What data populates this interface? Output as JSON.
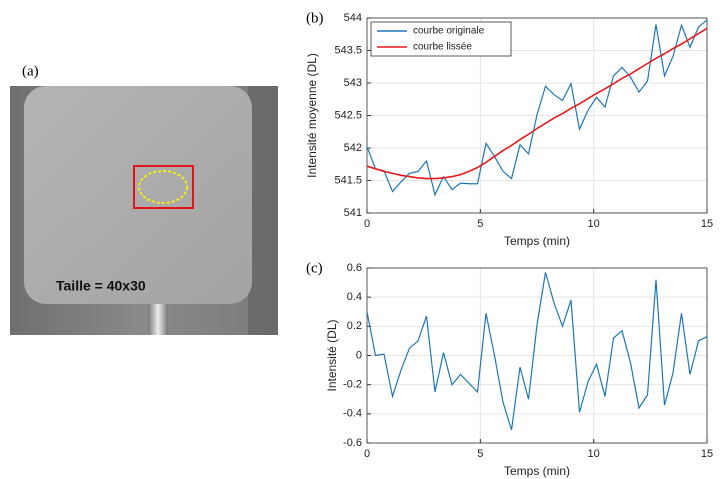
{
  "image_panel": {
    "label": "(a)",
    "caption": "Taille = 40x30"
  },
  "chart_data": [
    {
      "type": "line",
      "panel_label": "(b)",
      "xlabel": "Temps (min)",
      "ylabel": "Intensité moyenne (DL)",
      "x": [
        0,
        0.375,
        0.75,
        1.125,
        1.5,
        1.875,
        2.25,
        2.625,
        3,
        3.375,
        3.75,
        4.125,
        4.5,
        4.875,
        5.25,
        5.625,
        6,
        6.375,
        6.75,
        7.125,
        7.5,
        7.875,
        8.25,
        8.625,
        9,
        9.375,
        9.75,
        10.125,
        10.5,
        10.875,
        11.25,
        11.625,
        12,
        12.375,
        12.75,
        13.125,
        13.5,
        13.875,
        14.25,
        14.625,
        15
      ],
      "series": [
        {
          "name": "courbe originale",
          "color": "#1f77b4",
          "values": [
            542.02,
            541.68,
            541.65,
            541.33,
            541.48,
            541.61,
            541.64,
            541.8,
            541.28,
            541.56,
            541.36,
            541.46,
            541.45,
            541.45,
            542.07,
            541.87,
            541.64,
            541.53,
            542.05,
            541.91,
            542.51,
            542.95,
            542.82,
            542.73,
            542.99,
            542.29,
            542.58,
            542.78,
            542.63,
            543.11,
            543.24,
            543.09,
            542.86,
            543.03,
            543.9,
            543.11,
            543.41,
            543.89,
            543.55,
            543.86,
            543.97
          ]
        },
        {
          "name": "courbe lissée",
          "color": "#e8191b",
          "values": [
            541.72,
            541.68,
            541.64,
            541.61,
            541.58,
            541.56,
            541.54,
            541.53,
            541.53,
            541.54,
            541.56,
            541.59,
            541.64,
            541.7,
            541.78,
            541.87,
            541.96,
            542.04,
            542.13,
            542.21,
            542.3,
            542.38,
            542.46,
            542.53,
            542.61,
            542.68,
            542.76,
            542.84,
            542.91,
            542.99,
            543.07,
            543.14,
            543.22,
            543.3,
            543.38,
            543.45,
            543.53,
            543.6,
            543.68,
            543.76,
            543.84
          ]
        }
      ],
      "xlim": [
        0,
        15
      ],
      "xticks": [
        0,
        5,
        10,
        15
      ],
      "ylim": [
        541,
        544
      ],
      "yticks": [
        541,
        541.5,
        542,
        542.5,
        543,
        543.5,
        544
      ],
      "grid": true,
      "legend": "upper-left"
    },
    {
      "type": "line",
      "panel_label": "(c)",
      "xlabel": "Temps (min)",
      "ylabel": "Intensité (DL)",
      "x": [
        0,
        0.375,
        0.75,
        1.125,
        1.5,
        1.875,
        2.25,
        2.625,
        3,
        3.375,
        3.75,
        4.125,
        4.5,
        4.875,
        5.25,
        5.625,
        6,
        6.375,
        6.75,
        7.125,
        7.5,
        7.875,
        8.25,
        8.625,
        9,
        9.375,
        9.75,
        10.125,
        10.5,
        10.875,
        11.25,
        11.625,
        12,
        12.375,
        12.75,
        13.125,
        13.5,
        13.875,
        14.25,
        14.625,
        15
      ],
      "series": [
        {
          "color": "#1f77b4",
          "values": [
            0.3,
            0.0,
            0.01,
            -0.28,
            -0.1,
            0.05,
            0.1,
            0.27,
            -0.25,
            0.02,
            -0.2,
            -0.13,
            -0.19,
            -0.25,
            0.29,
            0.0,
            -0.32,
            -0.51,
            -0.08,
            -0.3,
            0.21,
            0.57,
            0.36,
            0.2,
            0.38,
            -0.39,
            -0.18,
            -0.06,
            -0.28,
            0.12,
            0.17,
            -0.05,
            -0.36,
            -0.27,
            0.52,
            -0.34,
            -0.12,
            0.29,
            -0.13,
            0.1,
            0.13
          ]
        }
      ],
      "xlim": [
        0,
        15
      ],
      "xticks": [
        0,
        5,
        10,
        15
      ],
      "ylim": [
        -0.6,
        0.6
      ],
      "yticks": [
        -0.6,
        -0.4,
        -0.2,
        0,
        0.2,
        0.4,
        0.6
      ],
      "grid": true
    }
  ]
}
